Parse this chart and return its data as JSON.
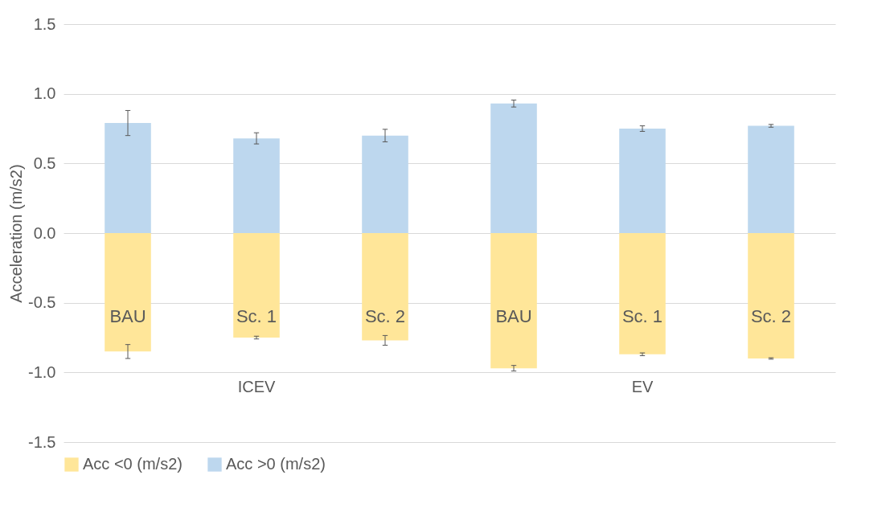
{
  "chart_data": {
    "type": "bar",
    "stacked": true,
    "ylabel": "Acceleration (m/s2)",
    "categories": [
      "BAU",
      "Sc. 1",
      "Sc. 2",
      "BAU",
      "Sc. 1",
      "Sc. 2"
    ],
    "series": [
      {
        "name": "Acc <0 (m/s2)",
        "color": "#ffe699",
        "values": [
          -0.85,
          -0.75,
          -0.77,
          -0.97,
          -0.87,
          -0.9
        ],
        "errors": [
          0.05,
          0.01,
          0.035,
          0.02,
          0.01,
          0.005
        ]
      },
      {
        "name": "Acc >0 (m/s2)",
        "color": "#bdd7ee",
        "values": [
          0.79,
          0.68,
          0.7,
          0.93,
          0.75,
          0.77
        ],
        "errors": [
          0.09,
          0.04,
          0.045,
          0.025,
          0.02,
          0.01
        ]
      }
    ],
    "annotations": [
      "ICEV",
      "EV"
    ],
    "ylim": [
      -1.5,
      1.5
    ],
    "yticks": [
      {
        "value": -1.5,
        "label": "-1.5"
      },
      {
        "value": -1,
        "label": "-1.0"
      },
      {
        "value": -0.5,
        "label": "-0.5"
      },
      {
        "value": 0,
        "label": "0.0"
      },
      {
        "value": 0.5,
        "label": "0.5"
      },
      {
        "value": 1,
        "label": "1.0"
      },
      {
        "value": 1.5,
        "label": "1.5"
      }
    ],
    "grid": "y",
    "legend": "bottom"
  }
}
